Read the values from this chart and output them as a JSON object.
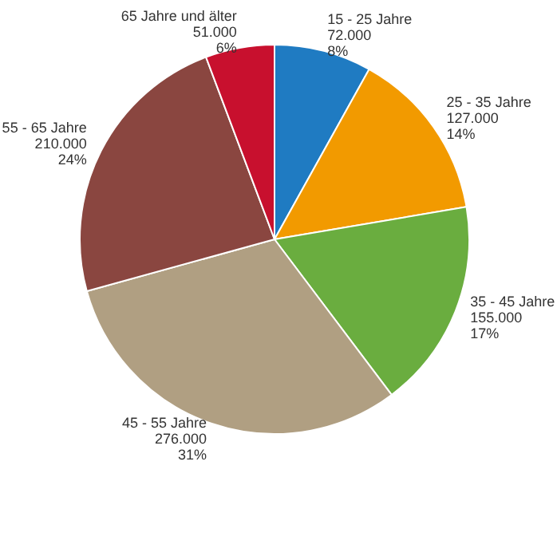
{
  "chart_data": {
    "type": "pie",
    "categories": [
      "15 - 25 Jahre",
      "25 - 35 Jahre",
      "35 - 45 Jahre",
      "45 - 55 Jahre",
      "55 - 65 Jahre",
      "65 Jahre und älter"
    ],
    "values": [
      72000,
      127000,
      155000,
      276000,
      210000,
      51000
    ],
    "value_labels": [
      "72.000\n8%",
      "127.000\n14%",
      "155.000\n17%",
      "276.000\n31%",
      "210.000\n24%",
      "51.000\n6%"
    ],
    "colors": [
      "#1f7bc2",
      "#f29a00",
      "#6aad3f",
      "#b09f82",
      "#8a4640",
      "#c8102e"
    ],
    "legend": false
  }
}
